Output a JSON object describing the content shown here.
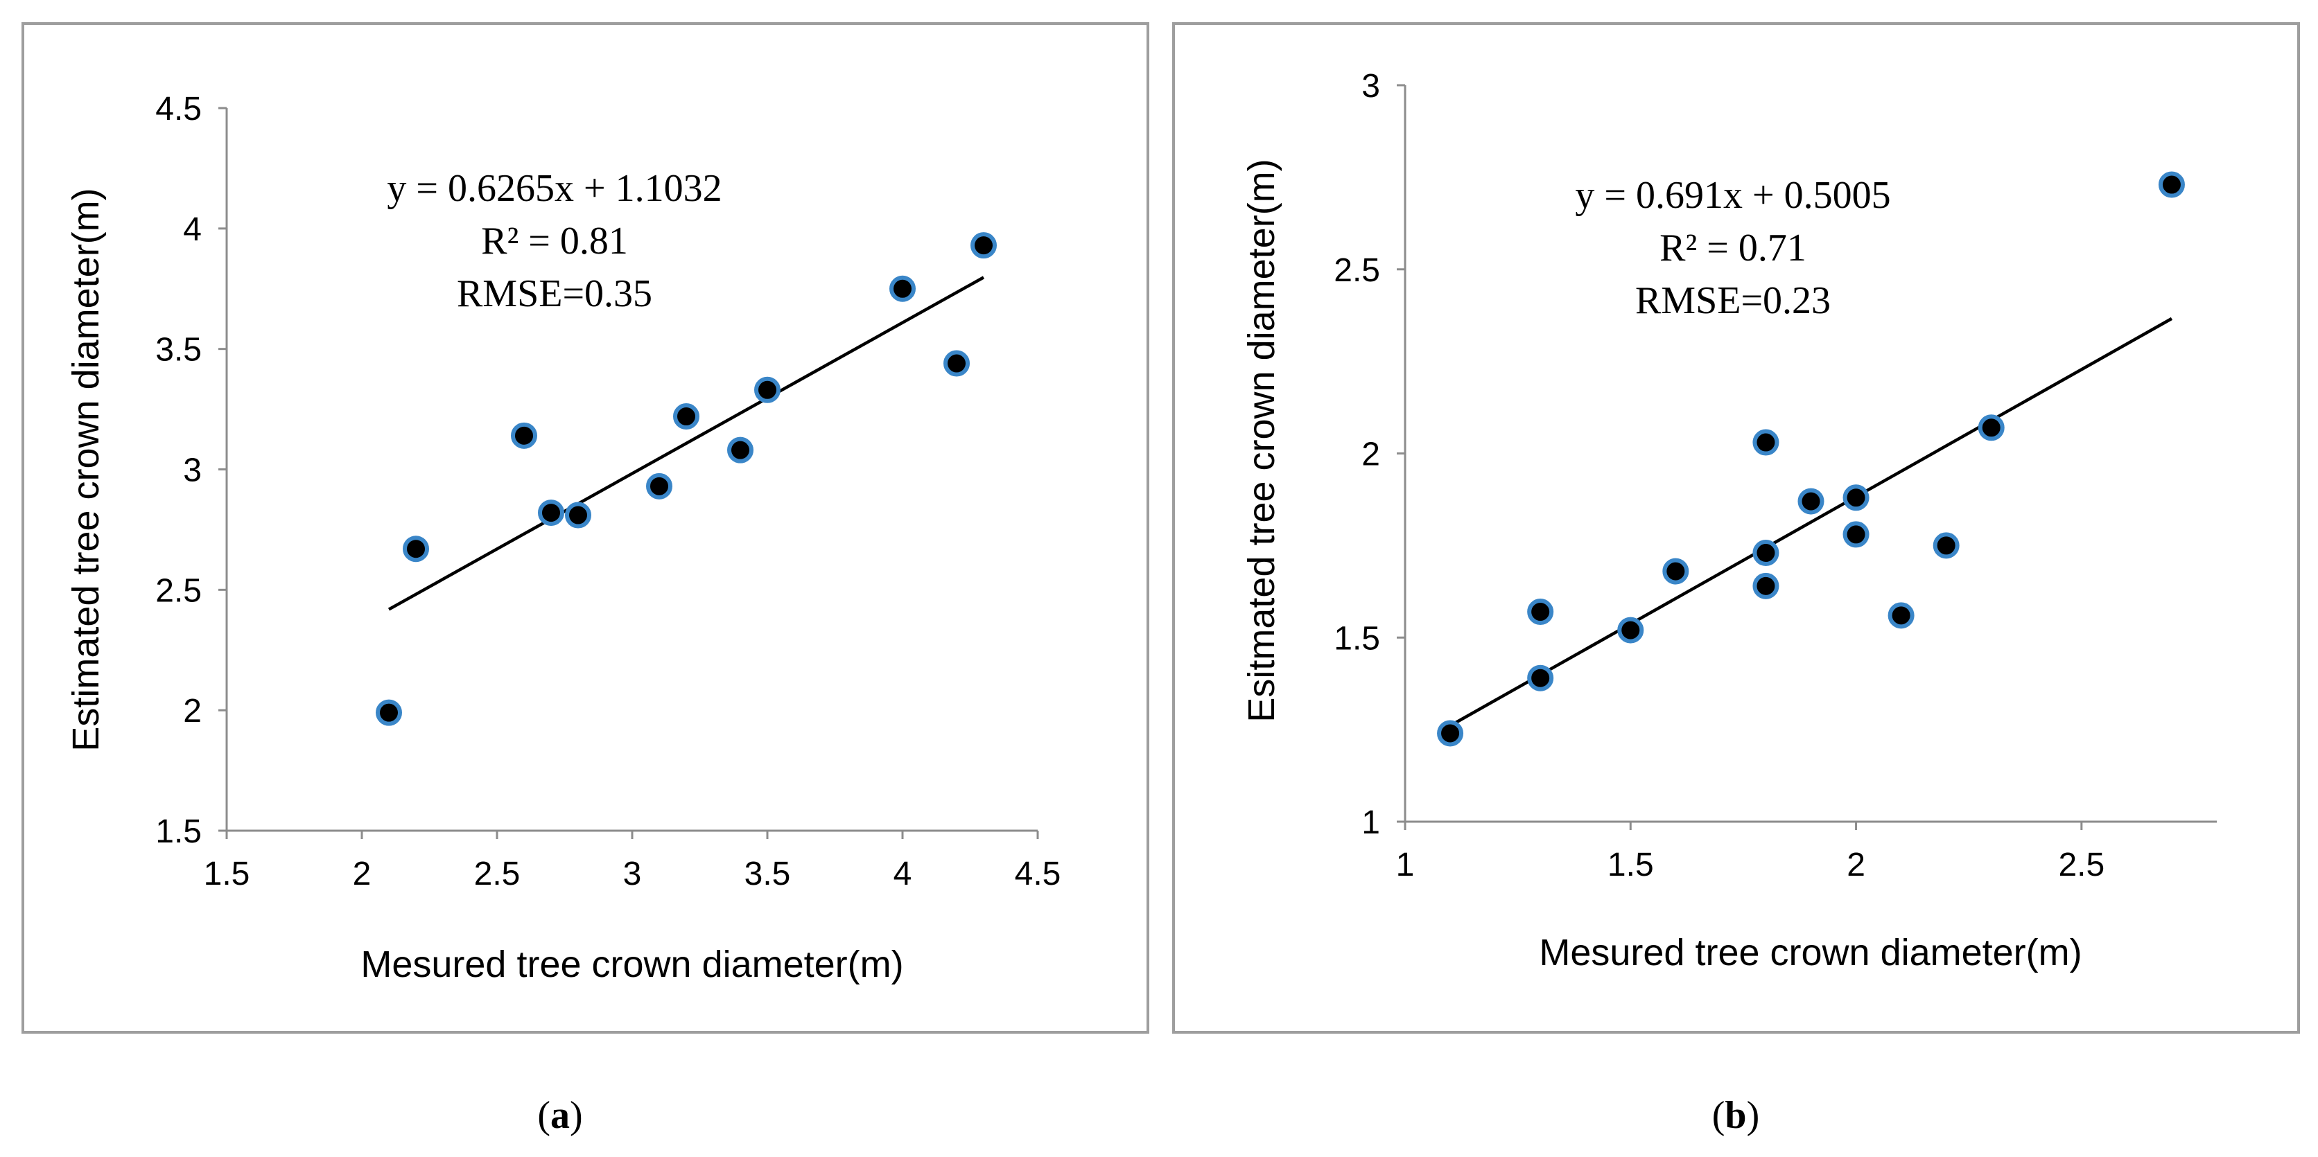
{
  "colors": {
    "border": "#9e9e9e",
    "point_fill": "#000000",
    "point_stroke": "#3a86c8",
    "trendline": "#000000"
  },
  "chart_data": [
    {
      "panel_label": "a",
      "type": "scatter",
      "xlabel": "Mesured tree crown diameter(m)",
      "ylabel": "Estimated tree  crown diameter(m)",
      "xlim": [
        1.5,
        4.5
      ],
      "ylim": [
        1.5,
        4.5
      ],
      "xticks": [
        1.5,
        2,
        2.5,
        3,
        3.5,
        4,
        4.5
      ],
      "yticks": [
        1.5,
        2,
        2.5,
        3,
        3.5,
        4,
        4.5
      ],
      "xtick_labels": [
        "1.5",
        "2",
        "2.5",
        "3",
        "3.5",
        "4",
        "4.5"
      ],
      "ytick_labels": [
        "1.5",
        "2",
        "2.5",
        "3",
        "3.5",
        "4",
        "4.5"
      ],
      "points": [
        {
          "x": 2.1,
          "y": 1.99
        },
        {
          "x": 2.2,
          "y": 2.67
        },
        {
          "x": 2.6,
          "y": 3.14
        },
        {
          "x": 2.7,
          "y": 2.82
        },
        {
          "x": 2.8,
          "y": 2.81
        },
        {
          "x": 3.1,
          "y": 2.93
        },
        {
          "x": 3.2,
          "y": 3.22
        },
        {
          "x": 3.4,
          "y": 3.08
        },
        {
          "x": 3.5,
          "y": 3.33
        },
        {
          "x": 4.0,
          "y": 3.75
        },
        {
          "x": 4.2,
          "y": 3.44
        },
        {
          "x": 4.3,
          "y": 3.93
        }
      ],
      "trendline": {
        "slope": 0.6265,
        "intercept": 1.1032,
        "x_range": [
          2.1,
          4.3
        ]
      },
      "annotations": [
        "y = 0.6265x + 1.1032",
        "R² = 0.81",
        "RMSE=0.35"
      ]
    },
    {
      "panel_label": "b",
      "type": "scatter",
      "xlabel": "Mesured tree crown diameter(m)",
      "ylabel": "Esitmated tree crown diameter(m)",
      "xlim": [
        1,
        2.8
      ],
      "ylim": [
        1,
        3
      ],
      "xticks": [
        1,
        1.5,
        2,
        2.5
      ],
      "yticks": [
        1,
        1.5,
        2,
        2.5,
        3
      ],
      "xtick_labels": [
        "1",
        "1.5",
        "2",
        "2.5"
      ],
      "ytick_labels": [
        "1",
        "1.5",
        "2",
        "2.5",
        "3"
      ],
      "points": [
        {
          "x": 1.1,
          "y": 1.24
        },
        {
          "x": 1.3,
          "y": 1.39
        },
        {
          "x": 1.3,
          "y": 1.57
        },
        {
          "x": 1.5,
          "y": 1.52
        },
        {
          "x": 1.6,
          "y": 1.68
        },
        {
          "x": 1.8,
          "y": 1.64
        },
        {
          "x": 1.8,
          "y": 1.73
        },
        {
          "x": 1.8,
          "y": 2.03
        },
        {
          "x": 1.9,
          "y": 1.87
        },
        {
          "x": 2.0,
          "y": 1.78
        },
        {
          "x": 2.0,
          "y": 1.88
        },
        {
          "x": 2.1,
          "y": 1.56
        },
        {
          "x": 2.2,
          "y": 1.75
        },
        {
          "x": 2.3,
          "y": 2.07
        },
        {
          "x": 2.7,
          "y": 2.73
        }
      ],
      "trendline": {
        "slope": 0.691,
        "intercept": 0.5005,
        "x_range": [
          1.1,
          2.7
        ]
      },
      "annotations": [
        "y = 0.691x + 0.5005",
        "R² = 0.71",
        "RMSE=0.23"
      ]
    }
  ]
}
